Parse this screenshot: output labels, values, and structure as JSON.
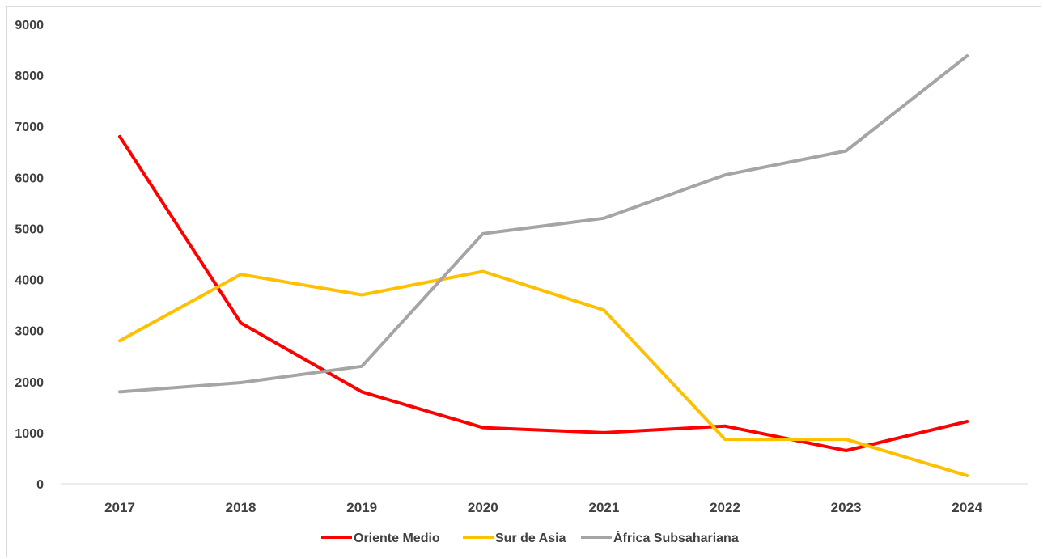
{
  "chart_data": {
    "type": "line",
    "categories": [
      "2017",
      "2018",
      "2019",
      "2020",
      "2021",
      "2022",
      "2023",
      "2024"
    ],
    "ylim": [
      0,
      9000
    ],
    "yticks": [
      0,
      1000,
      2000,
      3000,
      4000,
      5000,
      6000,
      7000,
      8000,
      9000
    ],
    "grid": false,
    "legend_position": "bottom",
    "series": [
      {
        "name": "Oriente Medio",
        "color": "#ff0000",
        "values": [
          6800,
          3150,
          1800,
          1100,
          1000,
          1130,
          650,
          1220
        ]
      },
      {
        "name": "Sur de Asia",
        "color": "#ffc000",
        "values": [
          2800,
          4100,
          3700,
          4160,
          3400,
          870,
          870,
          160
        ]
      },
      {
        "name": "África Subsahariana",
        "color": "#a5a5a5",
        "values": [
          1800,
          1980,
          2300,
          4900,
          5200,
          6050,
          6520,
          8380
        ]
      }
    ]
  }
}
